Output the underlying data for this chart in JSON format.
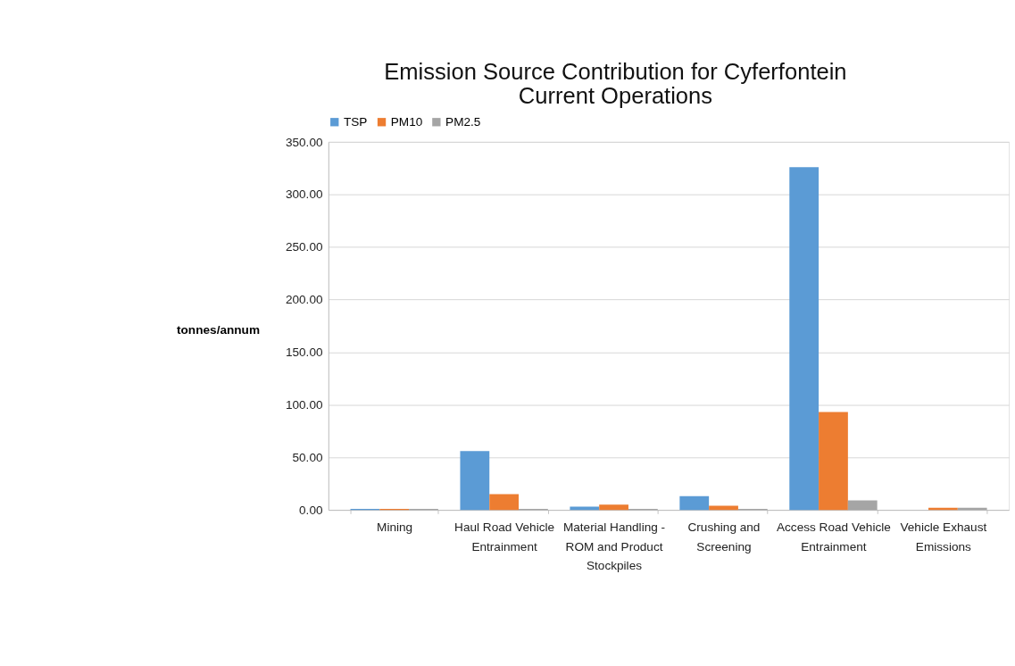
{
  "chart_data": {
    "type": "bar",
    "title": "Emission Source Contribution for Cyferfontein Current Operations",
    "ylabel": "tonnes/annum",
    "categories": [
      "Mining",
      "Haul Road Vehicle Entrainment",
      "Material Handling - ROM and Product Stockpiles",
      "Crushing and Screening",
      "Access Road Vehicle Entrainment",
      "Vehicle Exhaust Emissions"
    ],
    "series": [
      {
        "name": "TSP",
        "color": "#5b9bd5",
        "values": [
          1,
          56,
          3,
          13,
          326,
          0
        ]
      },
      {
        "name": "PM10",
        "color": "#ed7d31",
        "values": [
          1,
          15,
          5,
          4,
          93,
          2
        ]
      },
      {
        "name": "PM2.5",
        "color": "#a5a5a5",
        "values": [
          1,
          1,
          1,
          1,
          9,
          2
        ]
      }
    ],
    "ylim": [
      0,
      350
    ],
    "yticks": [
      {
        "value": 0,
        "label": "0.00"
      },
      {
        "value": 50,
        "label": "50.00"
      },
      {
        "value": 100,
        "label": "100.00"
      },
      {
        "value": 150,
        "label": "150.00"
      },
      {
        "value": 200,
        "label": "200.00"
      },
      {
        "value": 250,
        "label": "250.00"
      },
      {
        "value": 300,
        "label": "300.00"
      },
      {
        "value": 350,
        "label": "350.00"
      }
    ],
    "grid": "y",
    "legend": "top"
  }
}
